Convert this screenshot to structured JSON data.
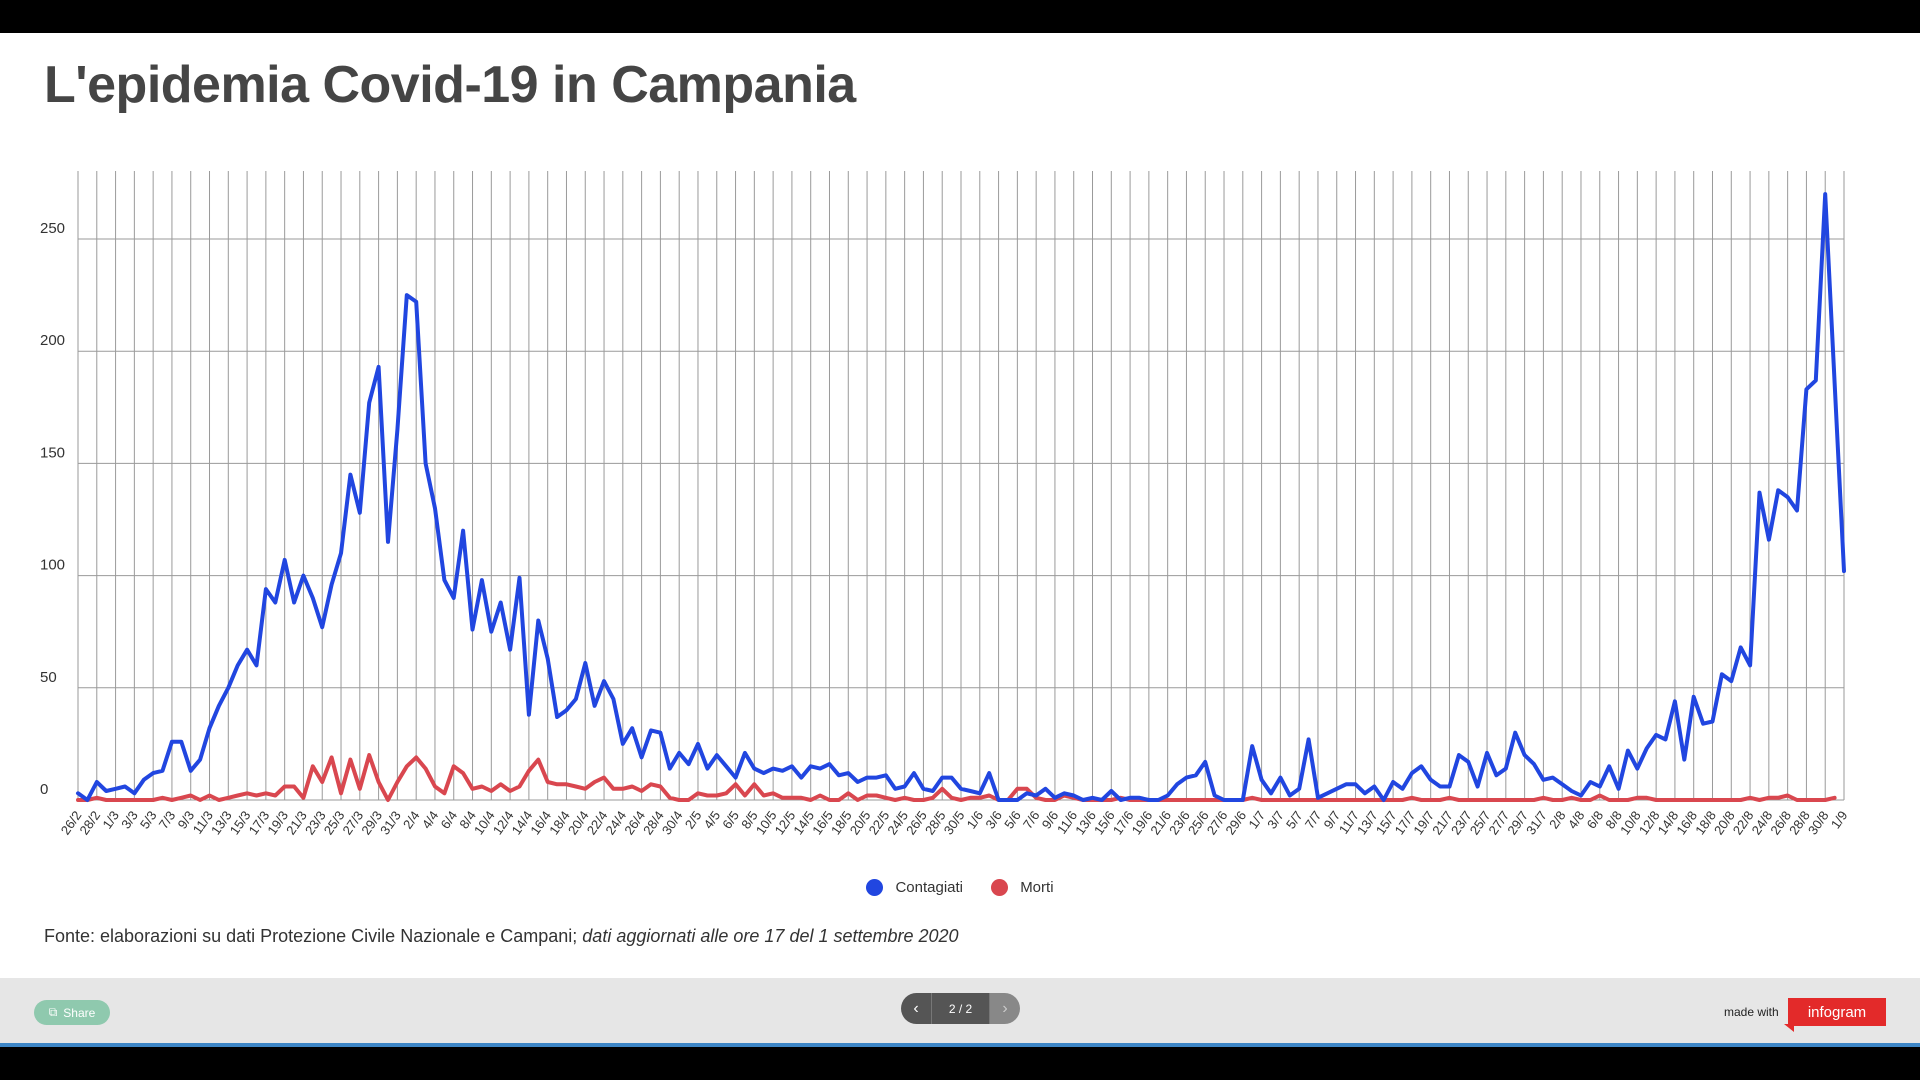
{
  "title": "L'epidemia Covid-19 in Campania",
  "source": {
    "plain": "Fonte: elaborazioni su dati Protezione Civile Nazionale e Campani; ",
    "italic": "dati aggiornati alle ore 17 del 1 settembre 2020"
  },
  "footer": {
    "share_label": "Share",
    "share_icon": "share-icon",
    "page_indicator": "2 / 2",
    "prev_icon": "chevron-left-icon",
    "next_icon": "chevron-right-icon",
    "made_with": "made with",
    "brand": "infogram"
  },
  "colors": {
    "contagiati": "#2146e0",
    "morti": "#d9474f",
    "grid": "#999999",
    "footer_accent": "#3d86c6"
  },
  "chart_data": {
    "type": "line",
    "title": "L'epidemia Covid-19 in Campania",
    "xlabel": "",
    "ylabel": "",
    "ylim": [
      0,
      280
    ],
    "yticks": [
      0,
      50,
      100,
      150,
      200,
      250
    ],
    "grid": true,
    "legend_position": "bottom",
    "start_date": "2020-02-26",
    "end_date": "2020-09-01",
    "tick_labels": [
      "26/2",
      "28/2",
      "1/3",
      "3/3",
      "5/3",
      "7/3",
      "9/3",
      "11/3",
      "13/3",
      "15/3",
      "17/3",
      "19/3",
      "21/3",
      "23/3",
      "25/3",
      "27/3",
      "29/3",
      "31/3",
      "2/4",
      "4/4",
      "6/4",
      "8/4",
      "10/4",
      "12/4",
      "14/4",
      "16/4",
      "18/4",
      "20/4",
      "22/4",
      "24/4",
      "26/4",
      "28/4",
      "30/4",
      "2/5",
      "4/5",
      "6/5",
      "8/5",
      "10/5",
      "12/5",
      "14/5",
      "16/5",
      "18/5",
      "20/5",
      "22/5",
      "24/5",
      "26/5",
      "28/5",
      "30/5",
      "1/6",
      "3/6",
      "5/6",
      "7/6",
      "9/6",
      "11/6",
      "13/6",
      "15/6",
      "17/6",
      "19/6",
      "21/6",
      "23/6",
      "25/6",
      "27/6",
      "29/6",
      "1/7",
      "3/7",
      "5/7",
      "7/7",
      "9/7",
      "11/7",
      "13/7",
      "15/7",
      "17/7",
      "19/7",
      "21/7",
      "23/7",
      "25/7",
      "27/7",
      "29/7",
      "31/7",
      "2/8",
      "4/8",
      "6/8",
      "8/8",
      "10/8",
      "12/8",
      "14/8",
      "16/8",
      "18/8",
      "20/8",
      "22/8",
      "24/8",
      "26/8",
      "28/8",
      "30/8",
      "1/9"
    ],
    "series": [
      {
        "name": "Contagiati",
        "color": "#2146e0",
        "values": [
          3,
          0,
          8,
          4,
          5,
          6,
          3,
          9,
          12,
          13,
          26,
          26,
          13,
          18,
          32,
          42,
          50,
          60,
          67,
          60,
          94,
          88,
          107,
          88,
          100,
          90,
          77,
          96,
          110,
          145,
          128,
          177,
          193,
          115,
          165,
          225,
          222,
          150,
          130,
          98,
          90,
          120,
          76,
          98,
          75,
          88,
          67,
          99,
          38,
          80,
          63,
          37,
          40,
          45,
          61,
          42,
          53,
          45,
          25,
          32,
          19,
          31,
          30,
          14,
          21,
          16,
          25,
          14,
          20,
          15,
          10,
          21,
          14,
          12,
          14,
          13,
          15,
          10,
          15,
          14,
          16,
          11,
          12,
          8,
          10,
          10,
          11,
          5,
          6,
          12,
          5,
          4,
          10,
          10,
          5,
          4,
          3,
          12,
          0,
          0,
          0,
          3,
          2,
          5,
          1,
          3,
          2,
          0,
          1,
          0,
          4,
          0,
          1,
          1,
          0,
          0,
          2,
          7,
          10,
          11,
          17,
          2,
          0,
          0,
          0,
          24,
          9,
          3,
          10,
          2,
          5,
          27,
          1,
          3,
          5,
          7,
          7,
          3,
          6,
          0,
          8,
          5,
          12,
          15,
          9,
          6,
          6,
          20,
          17,
          6,
          21,
          11,
          14,
          30,
          20,
          16,
          9,
          10,
          7,
          4,
          2,
          8,
          6,
          15,
          5,
          22,
          14,
          23,
          29,
          27,
          44,
          18,
          46,
          34,
          35,
          56,
          53,
          68,
          60,
          137,
          116,
          138,
          135,
          129,
          183,
          187,
          270,
          186,
          102
        ]
      },
      {
        "name": "Morti",
        "color": "#d9474f",
        "values": [
          0,
          0,
          1,
          0,
          0,
          0,
          0,
          0,
          0,
          1,
          0,
          1,
          2,
          0,
          2,
          0,
          1,
          2,
          3,
          2,
          3,
          2,
          6,
          6,
          1,
          15,
          8,
          19,
          3,
          18,
          5,
          20,
          8,
          0,
          8,
          15,
          19,
          14,
          6,
          3,
          15,
          12,
          5,
          6,
          4,
          7,
          4,
          6,
          13,
          18,
          8,
          7,
          7,
          6,
          5,
          8,
          10,
          5,
          5,
          6,
          4,
          7,
          6,
          1,
          0,
          0,
          3,
          2,
          2,
          3,
          7,
          2,
          7,
          2,
          3,
          1,
          1,
          1,
          0,
          2,
          0,
          0,
          3,
          0,
          2,
          2,
          1,
          0,
          1,
          0,
          0,
          1,
          5,
          1,
          0,
          1,
          1,
          2,
          0,
          0,
          5,
          5,
          1,
          0,
          0,
          2,
          1,
          0,
          0,
          0,
          0,
          1,
          0,
          0,
          0,
          0,
          0,
          0,
          0,
          0,
          0,
          0,
          0,
          0,
          0,
          1,
          0,
          0,
          0,
          0,
          0,
          0,
          0,
          0,
          0,
          0,
          0,
          0,
          0,
          0,
          0,
          0,
          1,
          0,
          0,
          0,
          1,
          0,
          0,
          0,
          0,
          0,
          0,
          0,
          0,
          0,
          1,
          0,
          0,
          1,
          0,
          0,
          2,
          0,
          0,
          0,
          1,
          1,
          0,
          0,
          0,
          0,
          0,
          0,
          0,
          0,
          0,
          0,
          1,
          0,
          1,
          1,
          2,
          0,
          0,
          0,
          0,
          1
        ]
      }
    ]
  }
}
